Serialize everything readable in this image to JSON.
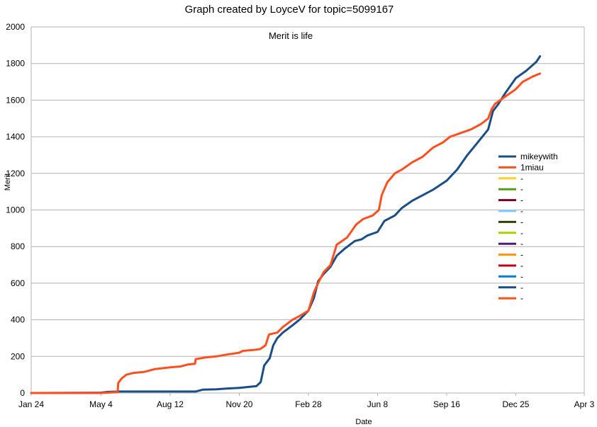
{
  "chart_data": {
    "type": "line",
    "title": "Graph created by LoyceV for topic=5099167",
    "subtitle": "Merit is life",
    "xlabel": "Date",
    "ylabel": "Merit",
    "ylim": [
      0,
      2000
    ],
    "yticks": [
      0,
      200,
      400,
      600,
      800,
      1000,
      1200,
      1400,
      1600,
      1800,
      2000
    ],
    "xticks": [
      "Jan 24",
      "May 4",
      "Aug 12",
      "Nov 20",
      "Feb 28",
      "Jun 8",
      "Sep 16",
      "Dec 25",
      "Apr 3"
    ],
    "xlim": [
      "Jan 24",
      "Apr 3"
    ],
    "x_unit": "date",
    "grid": true,
    "legend_position": "right",
    "series": [
      {
        "name": "mikeywith",
        "color": "#1a4e86",
        "points": [
          [
            "Jan 24",
            0
          ],
          [
            "May 4",
            2
          ],
          [
            "May 14",
            6
          ],
          [
            "Jun 1",
            8
          ],
          [
            "Jul 1",
            8
          ],
          [
            "Aug 12",
            8
          ],
          [
            "Sep 18",
            8
          ],
          [
            "Sep 28",
            18
          ],
          [
            "Oct 18",
            20
          ],
          [
            "Nov 1",
            24
          ],
          [
            "Nov 20",
            28
          ],
          [
            "Dec 5",
            34
          ],
          [
            "Dec 15",
            38
          ],
          [
            "Dec 21",
            60
          ],
          [
            "Dec 26",
            150
          ],
          [
            "Jan 3",
            190
          ],
          [
            "Jan 8",
            260
          ],
          [
            "Jan 14",
            300
          ],
          [
            "Jan 22",
            330
          ],
          [
            "Feb 5",
            370
          ],
          [
            "Feb 15",
            400
          ],
          [
            "Feb 28",
            450
          ],
          [
            "Mar 8",
            520
          ],
          [
            "Mar 14",
            610
          ],
          [
            "Mar 22",
            650
          ],
          [
            "Apr 1",
            690
          ],
          [
            "Apr 10",
            750
          ],
          [
            "Apr 22",
            790
          ],
          [
            "May 6",
            830
          ],
          [
            "May 16",
            840
          ],
          [
            "May 24",
            860
          ],
          [
            "Jun 8",
            880
          ],
          [
            "Jun 18",
            940
          ],
          [
            "Jul 3",
            970
          ],
          [
            "Jul 13",
            1010
          ],
          [
            "Jul 28",
            1050
          ],
          [
            "Aug 12",
            1080
          ],
          [
            "Aug 27",
            1110
          ],
          [
            "Sep 16",
            1160
          ],
          [
            "Oct 1",
            1220
          ],
          [
            "Oct 16",
            1300
          ],
          [
            "Oct 31",
            1370
          ],
          [
            "Nov 15",
            1440
          ],
          [
            "Nov 22",
            1540
          ],
          [
            "Nov 30",
            1580
          ],
          [
            "Dec 10",
            1640
          ],
          [
            "Dec 25",
            1720
          ],
          [
            "Jan 9",
            1760
          ],
          [
            "Jan 24",
            1810
          ],
          [
            "Jan 29",
            1840
          ]
        ]
      },
      {
        "name": "1miau",
        "color": "#ff4f1f",
        "points": [
          [
            "Jan 24",
            0
          ],
          [
            "May 4",
            0
          ],
          [
            "May 28",
            5
          ],
          [
            "May 29",
            55
          ],
          [
            "Jun 3",
            80
          ],
          [
            "Jun 10",
            100
          ],
          [
            "Jun 20",
            110
          ],
          [
            "Jul 5",
            115
          ],
          [
            "Jul 20",
            130
          ],
          [
            "Aug 12",
            140
          ],
          [
            "Aug 27",
            145
          ],
          [
            "Sep 6",
            155
          ],
          [
            "Sep 17",
            160
          ],
          [
            "Sep 18",
            185
          ],
          [
            "Oct 3",
            195
          ],
          [
            "Oct 18",
            200
          ],
          [
            "Nov 2",
            210
          ],
          [
            "Nov 20",
            220
          ],
          [
            "Nov 25",
            230
          ],
          [
            "Dec 10",
            235
          ],
          [
            "Dec 20",
            240
          ],
          [
            "Dec 28",
            260
          ],
          [
            "Jan 2",
            320
          ],
          [
            "Jan 14",
            330
          ],
          [
            "Jan 22",
            360
          ],
          [
            "Feb 5",
            400
          ],
          [
            "Feb 15",
            420
          ],
          [
            "Feb 28",
            450
          ],
          [
            "Mar 8",
            550
          ],
          [
            "Mar 14",
            600
          ],
          [
            "Mar 22",
            660
          ],
          [
            "Apr 1",
            700
          ],
          [
            "Apr 10",
            810
          ],
          [
            "Apr 25",
            850
          ],
          [
            "May 8",
            920
          ],
          [
            "May 18",
            950
          ],
          [
            "Jun 1",
            970
          ],
          [
            "Jun 10",
            1000
          ],
          [
            "Jun 14",
            1080
          ],
          [
            "Jun 22",
            1150
          ],
          [
            "Jul 3",
            1200
          ],
          [
            "Jul 13",
            1220
          ],
          [
            "Jul 28",
            1260
          ],
          [
            "Aug 12",
            1290
          ],
          [
            "Aug 27",
            1340
          ],
          [
            "Sep 11",
            1370
          ],
          [
            "Sep 21",
            1400
          ],
          [
            "Oct 6",
            1420
          ],
          [
            "Oct 21",
            1440
          ],
          [
            "Nov 5",
            1470
          ],
          [
            "Nov 15",
            1500
          ],
          [
            "Nov 20",
            1550
          ],
          [
            "Nov 25",
            1580
          ],
          [
            "Dec 10",
            1620
          ],
          [
            "Dec 25",
            1660
          ],
          [
            "Jan 4",
            1700
          ],
          [
            "Jan 19",
            1730
          ],
          [
            "Jan 29",
            1745
          ]
        ]
      }
    ],
    "legend": [
      {
        "label": "mikeywith",
        "color": "#1a4e86"
      },
      {
        "label": "1miau",
        "color": "#ff4f1f"
      },
      {
        "label": "-",
        "color": "#ffd320"
      },
      {
        "label": "-",
        "color": "#579d1c"
      },
      {
        "label": "-",
        "color": "#7e0021"
      },
      {
        "label": "-",
        "color": "#83caff"
      },
      {
        "label": "-",
        "color": "#314004"
      },
      {
        "label": "-",
        "color": "#aecf00"
      },
      {
        "label": "-",
        "color": "#4b1f6f"
      },
      {
        "label": "-",
        "color": "#ff950e"
      },
      {
        "label": "-",
        "color": "#c5000b"
      },
      {
        "label": "-",
        "color": "#0084d1"
      },
      {
        "label": "-",
        "color": "#1a4e86"
      },
      {
        "label": "-",
        "color": "#ff4f1f"
      }
    ]
  }
}
